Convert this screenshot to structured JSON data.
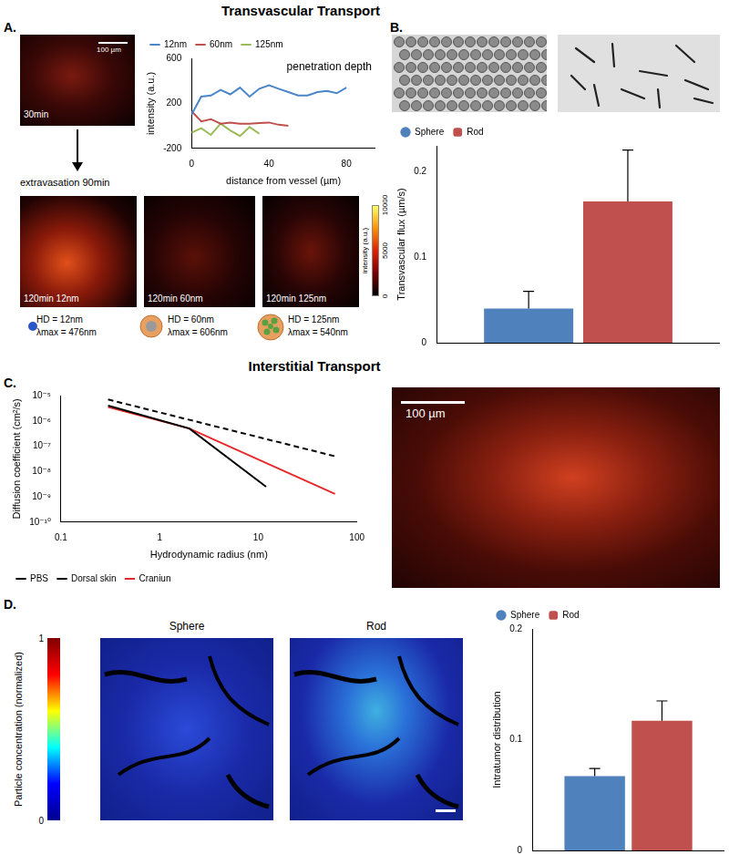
{
  "figure": {
    "section_titles": [
      "Transvascular Transport",
      "Interstitial Transport"
    ],
    "panel_labels": [
      "A.",
      "B.",
      "C.",
      "D."
    ],
    "panel_A": {
      "start_image": {
        "caption": "30min",
        "scale_bar": "100 µm"
      },
      "arrow_label": "extravasation 90min",
      "images": [
        "120min 12nm",
        "120min 60nm",
        "120min 125nm"
      ],
      "colorbar": {
        "label": "intensity (a.u.)",
        "range": [
          0,
          10000
        ],
        "ticks": [
          0,
          5000,
          10000
        ]
      },
      "particles": [
        {
          "hd": "HD = 12nm",
          "lambda_max": "λmax = 476nm"
        },
        {
          "hd": "HD = 60nm",
          "lambda_max": "λmax = 606nm"
        },
        {
          "hd": "HD = 125nm",
          "lambda_max": "λmax = 540nm"
        }
      ]
    },
    "panel_C": {
      "image_scale_bar": "100 µm"
    },
    "panel_D": {
      "images": [
        "Sphere",
        "Rod"
      ],
      "colorbar": {
        "label": "Particle concentration (normalized)",
        "range": [
          0,
          1
        ],
        "ticks": [
          0,
          1
        ]
      }
    }
  },
  "chart_data": [
    {
      "type": "line",
      "annotations": [
        "penetration depth"
      ],
      "x_label": "distance from vessel (µm)",
      "y_label": "intensity (a.u.)",
      "x": [
        0,
        5,
        10,
        15,
        20,
        25,
        30,
        35,
        40,
        45,
        50,
        55,
        60,
        65,
        70,
        75,
        80
      ],
      "series": [
        {
          "name": "12nm",
          "color": "#4a86c8",
          "values": [
            100,
            260,
            270,
            320,
            280,
            340,
            260,
            330,
            360,
            330,
            300,
            270,
            270,
            300,
            310,
            290,
            340
          ]
        },
        {
          "name": "60nm",
          "color": "#c0504d",
          "values": [
            130,
            40,
            60,
            20,
            30,
            20,
            20,
            25,
            30,
            10,
            0,
            null,
            null,
            null,
            null,
            null,
            null
          ]
        },
        {
          "name": "125nm",
          "color": "#9bbb59",
          "values": [
            -60,
            -20,
            -80,
            20,
            -40,
            -90,
            -10,
            -70,
            null,
            null,
            null,
            null,
            null,
            null,
            null,
            null,
            null
          ]
        }
      ],
      "xlim": [
        0,
        95
      ],
      "xticks": [
        0,
        40,
        80
      ],
      "ylim": [
        -200,
        600
      ],
      "yticks": [
        -200,
        200,
        600
      ],
      "grid": false,
      "legend": "top-left"
    },
    {
      "type": "bar",
      "categories": [
        null
      ],
      "series": [
        {
          "name": "Sphere",
          "color": "#4f81bd",
          "marker": "circle",
          "values": [
            0.04
          ],
          "errors": [
            0.02
          ]
        },
        {
          "name": "Rod",
          "color": "#c0504d",
          "marker": "rectRounded",
          "values": [
            0.165
          ],
          "errors": [
            0.06
          ]
        }
      ],
      "y_label": "Transvascular flux (µm/s)",
      "ylim": [
        0,
        0.23
      ],
      "yticks": [
        0,
        0.1,
        0.2
      ],
      "grid": false,
      "legend": "top-left",
      "tick_labels": "y"
    },
    {
      "type": "line",
      "log": true,
      "x_label": "Hydrodynamic radius (nm)",
      "y_label": "Diffusion coefficient (cm²/s)",
      "series": [
        {
          "name": "PBS",
          "color": "#000000",
          "line_style": "dashed",
          "x": [
            0.3,
            60
          ],
          "values": [
            7e-06,
            4e-08
          ]
        },
        {
          "name": "Dorsal skin",
          "color": "#000000",
          "line_style": "solid",
          "x": [
            0.3,
            2,
            12
          ],
          "values": [
            4e-06,
            5e-07,
            2.5e-09
          ]
        },
        {
          "name": "Craniun",
          "color": "#e8292b",
          "line_style": "solid",
          "x": [
            0.3,
            2,
            60
          ],
          "values": [
            3.5e-06,
            5e-07,
            1.3e-09
          ]
        }
      ],
      "xlim": [
        0.1,
        100
      ],
      "xticks": [
        0.1,
        1,
        10,
        100
      ],
      "ylim": [
        1e-10,
        1e-05
      ],
      "yticks": [
        {
          "value": 1e-10,
          "label": "10⁻¹⁰"
        },
        {
          "value": 1e-09,
          "label": "10⁻⁹"
        },
        {
          "value": 1e-08,
          "label": "10⁻⁸"
        },
        {
          "value": 1e-07,
          "label": "10⁻⁷"
        },
        {
          "value": 1e-06,
          "label": "10⁻⁶"
        },
        {
          "value": 1e-05,
          "label": "10⁻⁵"
        }
      ],
      "grid": false,
      "legend": "bottom-left"
    },
    {
      "type": "bar",
      "categories": [
        null
      ],
      "series": [
        {
          "name": "Sphere",
          "color": "#4f81bd",
          "marker": "circle",
          "values": [
            0.067
          ],
          "errors": [
            0.007
          ]
        },
        {
          "name": "Rod",
          "color": "#c0504d",
          "marker": "rectRounded",
          "values": [
            0.117
          ],
          "errors": [
            0.018
          ]
        }
      ],
      "y_label": "Intratumor distribution",
      "ylim": [
        0,
        0.2
      ],
      "yticks": [
        0,
        0.1,
        0.2
      ],
      "grid": false,
      "legend": "top-left",
      "tick_labels": "y"
    }
  ]
}
